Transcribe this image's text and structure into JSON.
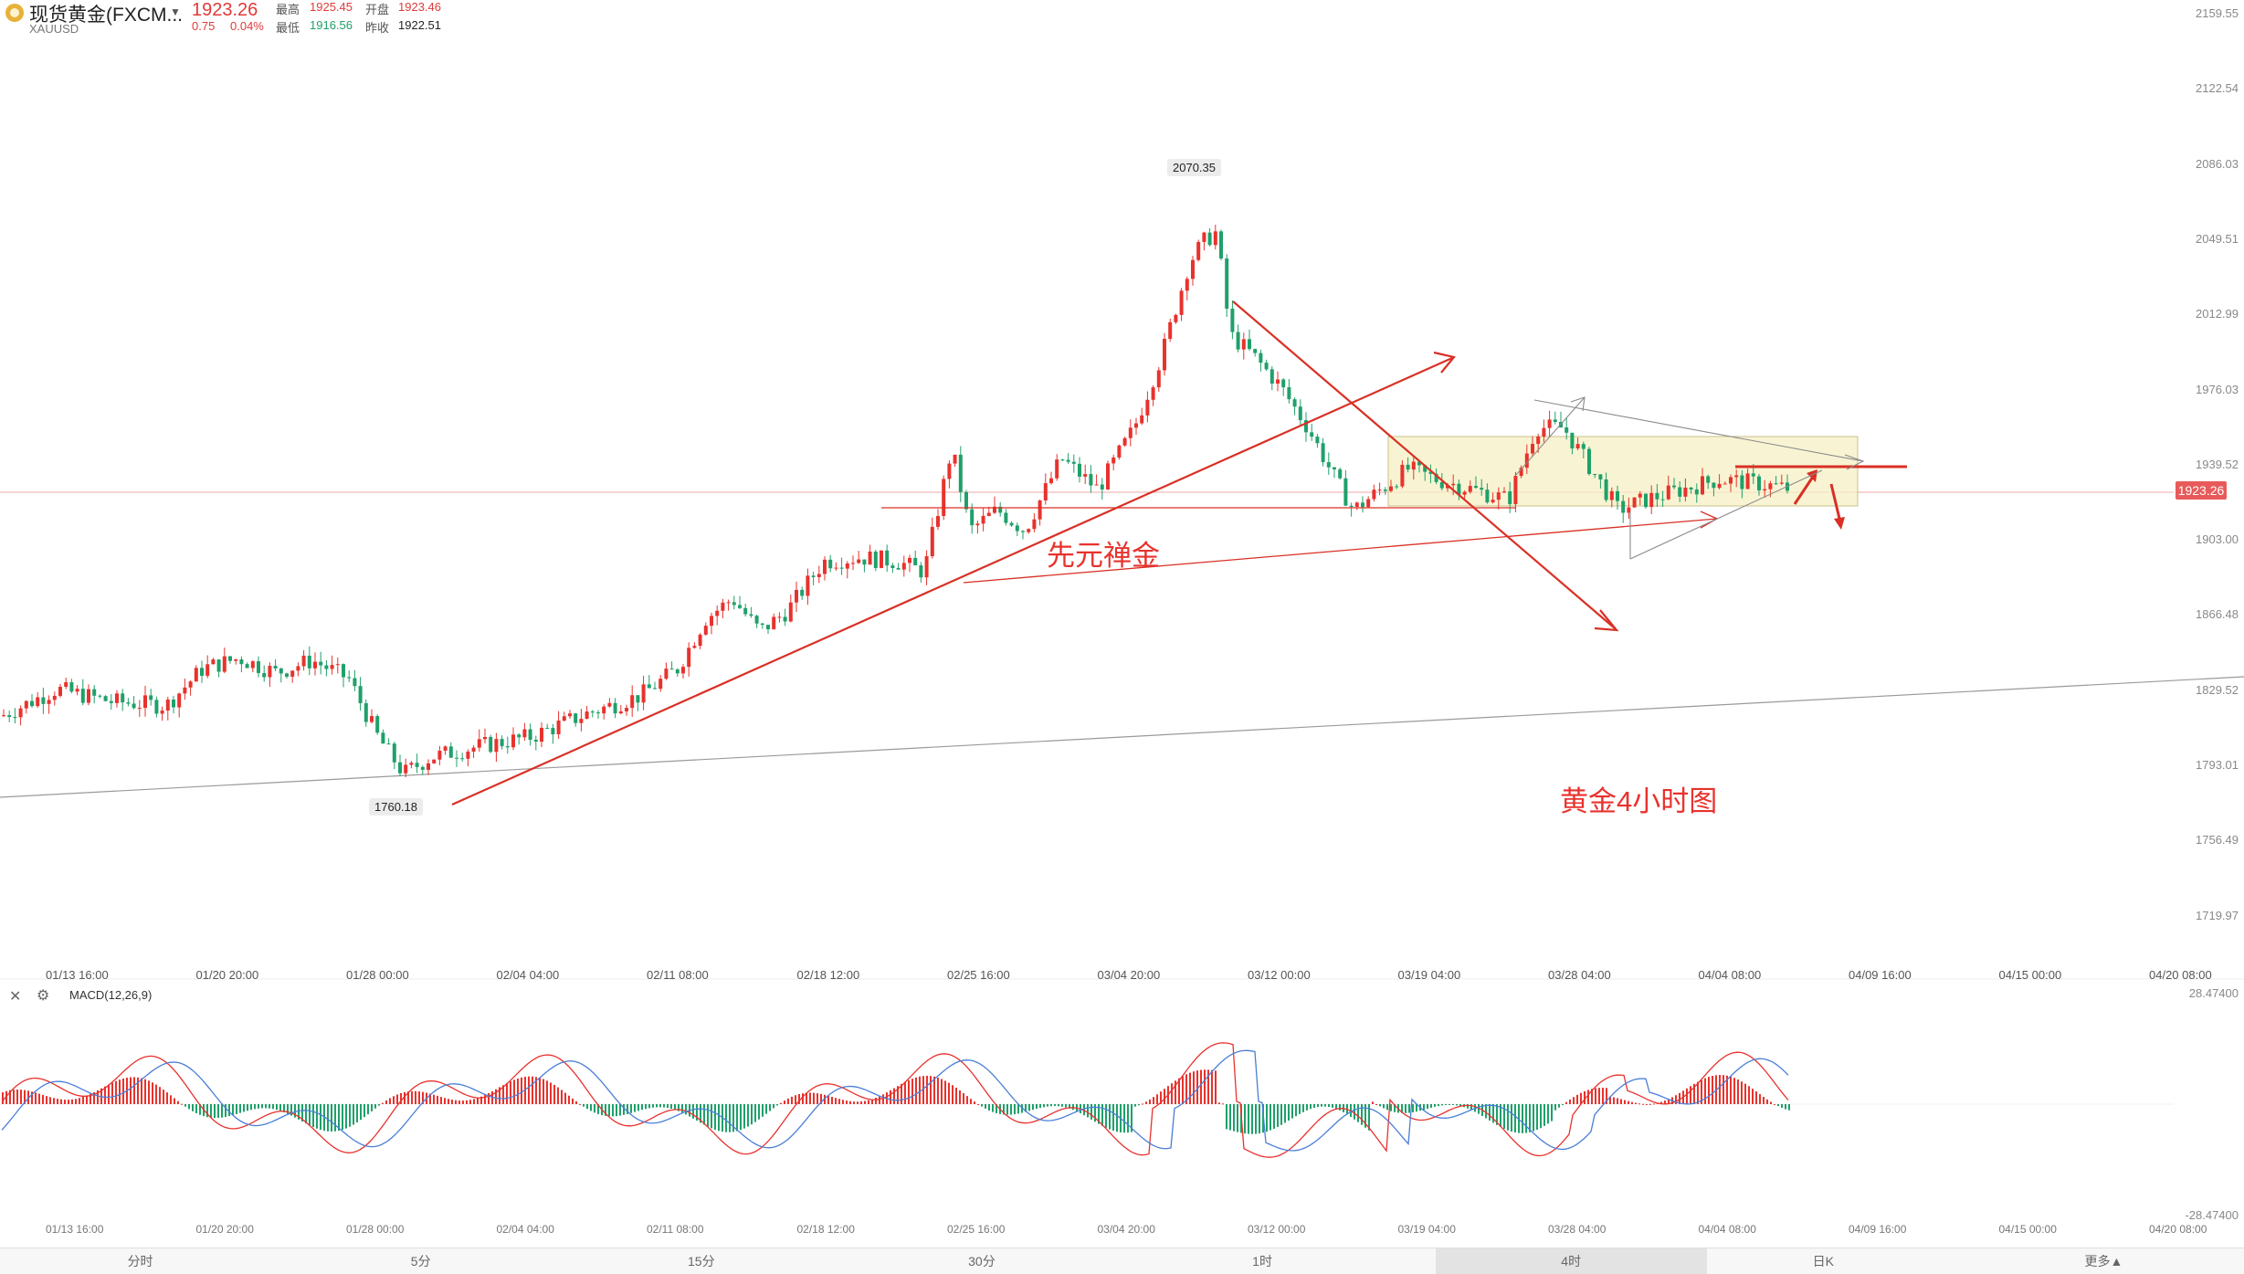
{
  "header": {
    "name": "现货黄金(FXCM...",
    "code": "XAUUSD",
    "price": "1923.26",
    "change": "0.75",
    "change_pct": "0.04%",
    "high_label": "最高",
    "high": "1925.45",
    "open_label": "开盘",
    "open": "1923.46",
    "low_label": "最低",
    "low": "1916.56",
    "prev_label": "昨收",
    "prev_close": "1922.51"
  },
  "chart": {
    "y_ticks": [
      "2159.55",
      "2122.54",
      "2086.03",
      "2049.51",
      "2012.99",
      "1976.03",
      "1939.52",
      "1903.00",
      "1866.48",
      "1829.52",
      "1793.01",
      "1756.49",
      "1719.97"
    ],
    "current_price_tag": "1923.26",
    "x_ticks": [
      "01/13 16:00",
      "01/20 20:00",
      "01/28 00:00",
      "02/04 04:00",
      "02/11 08:00",
      "02/18 12:00",
      "02/25 16:00",
      "03/04 20:00",
      "03/12 00:00",
      "03/19 04:00",
      "03/28 04:00",
      "04/04 08:00",
      "04/09 16:00",
      "04/15 00:00",
      "04/20 08:00"
    ],
    "high_callout": "2070.35",
    "low_callout": "1760.18",
    "annotation_brand": "先元禅金",
    "annotation_title": "黄金4小时图",
    "colors": {
      "up": "#e8322d",
      "down": "#1fa06a",
      "trend": "#d93025",
      "box": "#f6f0c4"
    }
  },
  "macd": {
    "label": "MACD(12,26,9)",
    "y_top": "28.47400",
    "y_bottom": "-28.47400",
    "x_ticks": [
      "01/13 16:00",
      "01/20 20:00",
      "01/28 00:00",
      "02/04 04:00",
      "02/11 08:00",
      "02/18 12:00",
      "02/25 16:00",
      "03/04 20:00",
      "03/12 00:00",
      "03/19 04:00",
      "03/28 04:00",
      "04/04 08:00",
      "04/09 16:00",
      "04/15 00:00",
      "04/20 08:00"
    ],
    "icons": [
      "close-icon",
      "gear-icon"
    ]
  },
  "timeframes": [
    "分时",
    "5分",
    "15分",
    "30分",
    "1时",
    "4时",
    "日K",
    "更多▲"
  ],
  "active_timeframe": "4时"
}
